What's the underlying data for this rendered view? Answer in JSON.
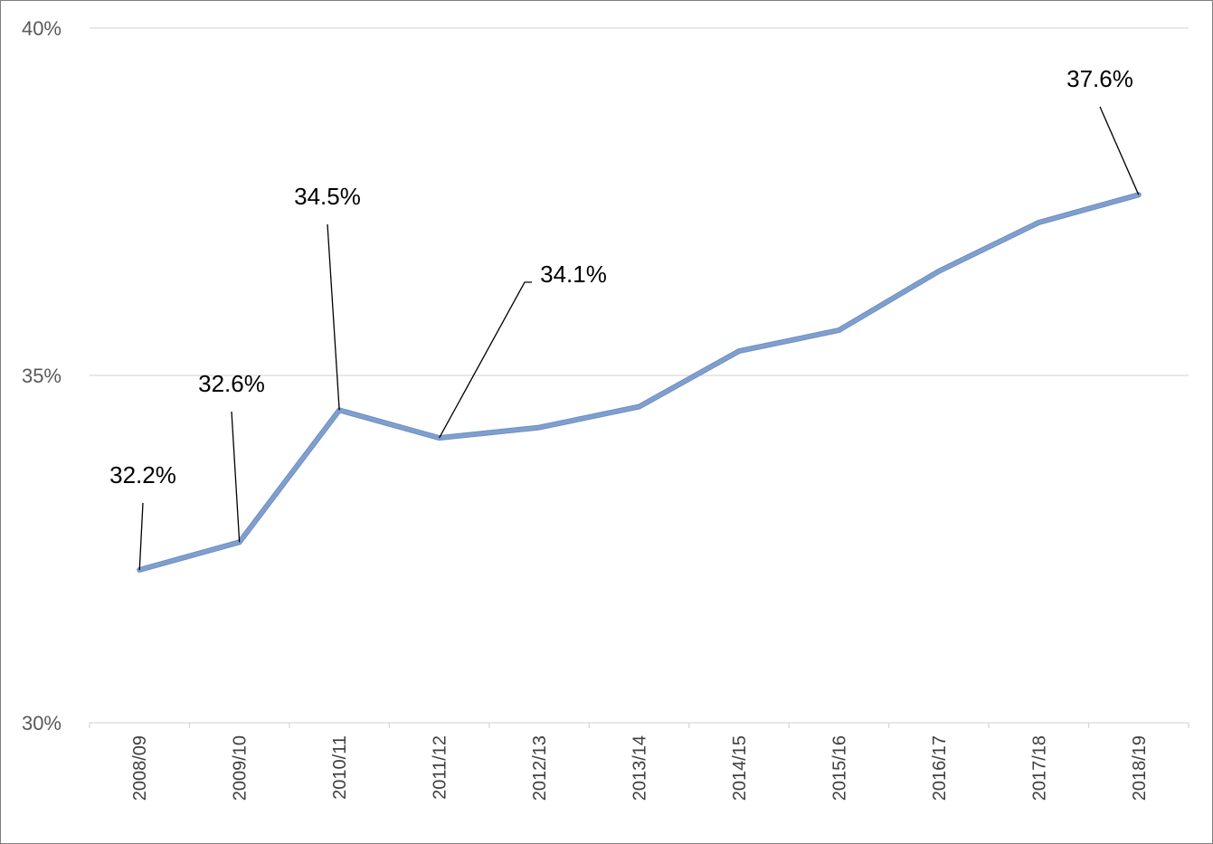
{
  "chart_data": {
    "type": "line",
    "title": "",
    "xlabel": "",
    "ylabel": "",
    "categories": [
      "2008/09",
      "2009/10",
      "2010/11",
      "2011/12",
      "2012/13",
      "2013/14",
      "2014/15",
      "2015/16",
      "2016/17",
      "2017/18",
      "2018/19"
    ],
    "series": [
      {
        "color": "#7f9fcf",
        "values": [
          32.2,
          32.6,
          34.5,
          34.1,
          34.25,
          34.55,
          35.35,
          35.65,
          36.5,
          37.2,
          37.6
        ]
      }
    ],
    "ylim": [
      30,
      40
    ],
    "yticks": [
      {
        "value": 30,
        "label": "30%"
      },
      {
        "value": 35,
        "label": "35%"
      },
      {
        "value": 40,
        "label": "40%"
      }
    ],
    "grid": true,
    "data_labels": [
      {
        "index": 0,
        "text": "32.2%"
      },
      {
        "index": 1,
        "text": "32.6%"
      },
      {
        "index": 2,
        "text": "34.5%"
      },
      {
        "index": 3,
        "text": "34.1%"
      },
      {
        "index": 10,
        "text": "37.6%"
      }
    ]
  }
}
